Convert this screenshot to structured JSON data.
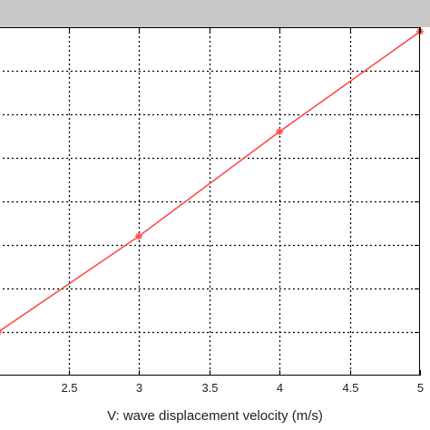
{
  "chart_data": {
    "type": "line",
    "title": "",
    "xlabel": "V: wave displacement velocity (m/s)",
    "ylabel": "",
    "xlim": [
      2,
      5
    ],
    "ylim": [
      0,
      8
    ],
    "grid": true,
    "grid_style": "dotted",
    "x_ticks": [
      2.5,
      3,
      3.5,
      4,
      4.5,
      5
    ],
    "x_tick_labels": [
      "2.5",
      "3",
      "3.5",
      "4",
      "4.5",
      "5"
    ],
    "y_ticks": [
      1,
      2,
      3,
      4,
      5,
      6,
      7,
      8
    ],
    "series": [
      {
        "color": "#ff4d4d",
        "marker": "*",
        "x": [
          2,
          3,
          4,
          5
        ],
        "y": [
          1.0,
          3.2,
          5.6,
          7.9
        ]
      }
    ],
    "colors": {
      "background": "#ffffff",
      "top_band": "#c8c8c8",
      "grid": "#000000",
      "line": "#ff4d4d"
    }
  }
}
